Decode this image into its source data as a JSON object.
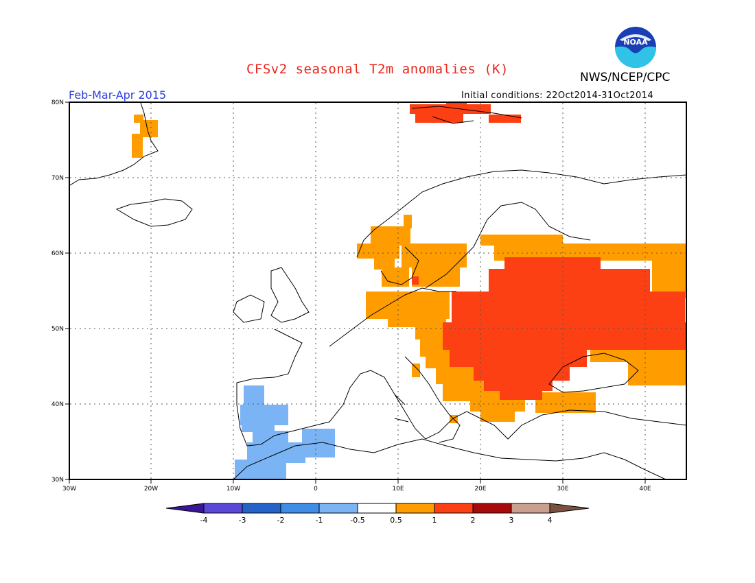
{
  "header": {
    "title": "CFSv2 seasonal T2m anomalies (K)",
    "organization": "NWS/NCEP/CPC",
    "period": "Feb-Mar-Apr 2015",
    "initial_conditions": "Initial conditions: 22Oct2014-31Oct2014",
    "logo_text": "NOAA"
  },
  "map": {
    "lon_labels": [
      "30W",
      "20W",
      "10W",
      "0",
      "10E",
      "20E",
      "30E",
      "40E"
    ],
    "lat_labels": [
      "30N",
      "40N",
      "50N",
      "60N",
      "70N",
      "80N"
    ]
  },
  "colorbar": {
    "tick_labels": [
      "-4",
      "-3",
      "-2",
      "-1",
      "-0.5",
      "0.5",
      "1",
      "2",
      "3",
      "4"
    ],
    "colors": {
      "below_-4": "#3a1596",
      "-4_-3": "#5a48d6",
      "-3_-2": "#2563c9",
      "-2_-1": "#3f8de6",
      "-1_-0.5": "#7ab4f5",
      "-0.5_0.5": "#ffffff",
      "0.5_1": "#ff9d00",
      "1_2": "#fd3f14",
      "2_3": "#a60a0a",
      "3_4": "#c8a090",
      "above_4": "#7a5040"
    }
  }
}
